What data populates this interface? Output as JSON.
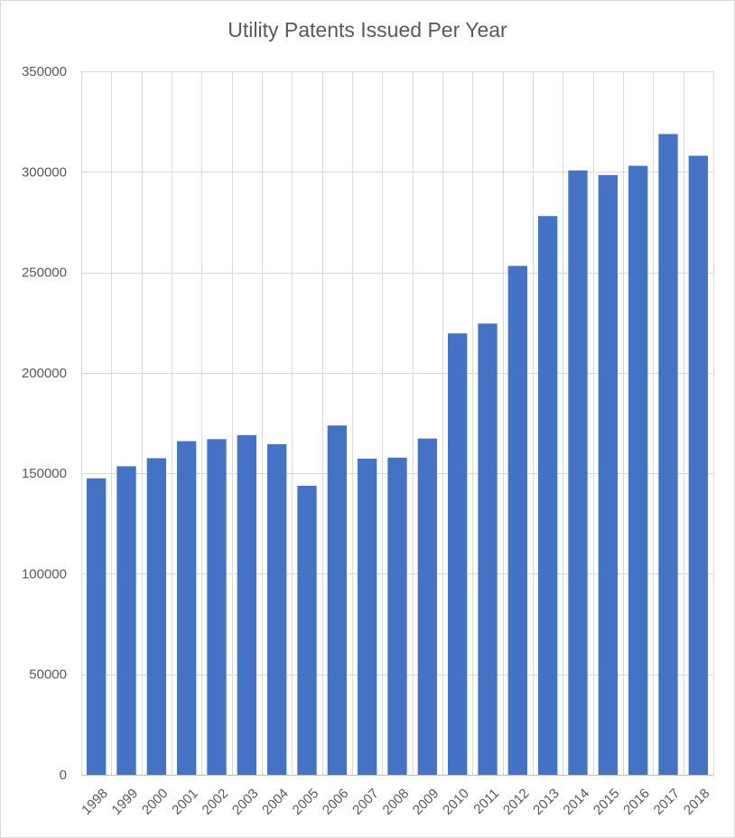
{
  "chart_data": {
    "type": "bar",
    "title": "Utility Patents Issued Per Year",
    "xlabel": "",
    "ylabel": "",
    "categories": [
      "1998",
      "1999",
      "2000",
      "2001",
      "2002",
      "2003",
      "2004",
      "2005",
      "2006",
      "2007",
      "2008",
      "2009",
      "2010",
      "2011",
      "2012",
      "2013",
      "2014",
      "2015",
      "2016",
      "2017",
      "2018"
    ],
    "values": [
      147500,
      153500,
      157500,
      166000,
      167000,
      169000,
      164500,
      143800,
      173800,
      157300,
      157800,
      167300,
      219600,
      224500,
      253200,
      278000,
      300700,
      298400,
      303000,
      318800,
      308000
    ],
    "ylim": [
      0,
      350000
    ],
    "yticks": [
      0,
      50000,
      100000,
      150000,
      200000,
      250000,
      300000,
      350000
    ],
    "grid": true,
    "bar_color": "#4472c4",
    "grid_color": "#d9d9d9"
  }
}
